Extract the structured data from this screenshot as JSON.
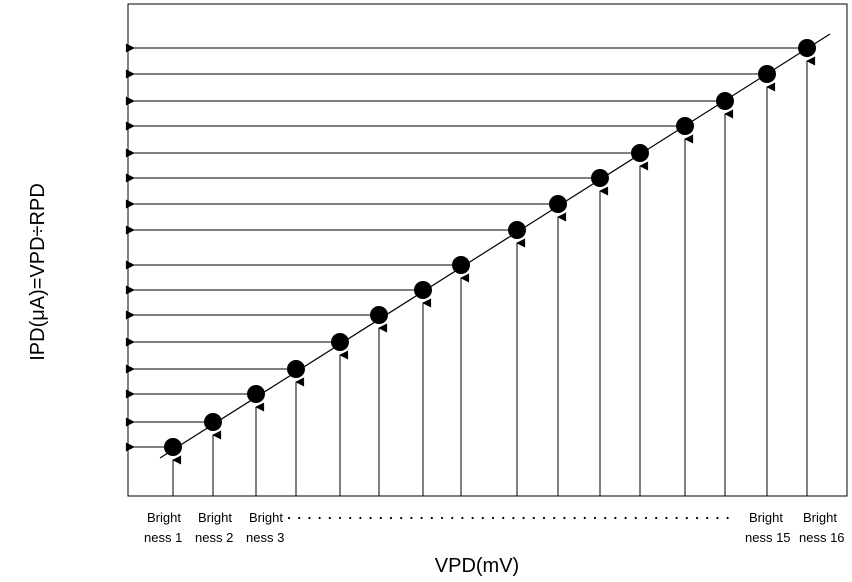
{
  "figure": {
    "xlabel": "VPD(mV)",
    "ylabel": "IPD(μA)=VPD÷RPD",
    "brightness_labels": [
      {
        "line1": "Bright",
        "line2": "ness 1"
      },
      {
        "line1": "Bright",
        "line2": "ness 2"
      },
      {
        "line1": "Bright",
        "line2": "ness 3"
      },
      {
        "line1": "Bright",
        "line2": "ness 15"
      },
      {
        "line1": "Bright",
        "line2": "ness 16"
      }
    ]
  },
  "chart_data": {
    "type": "line",
    "points_count": 16,
    "grid": false
  }
}
